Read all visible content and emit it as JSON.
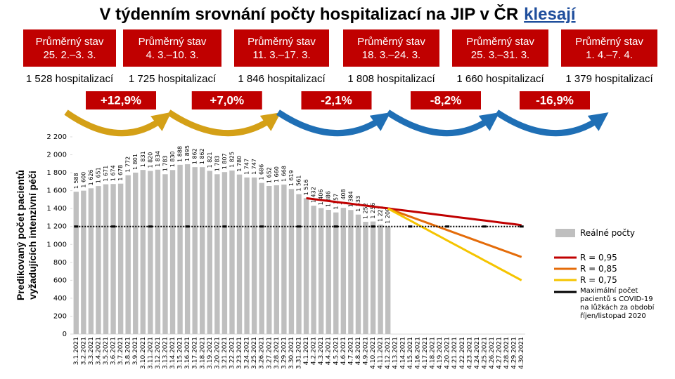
{
  "title": "V týdenním srovnání počty hospitalizací na JIP v ČR",
  "title_link": "klesají",
  "periods": [
    {
      "label": "Průměrný stav",
      "range": "25. 2.–3. 3.",
      "count": "1 528 hospitalizací"
    },
    {
      "label": "Průměrný stav",
      "range": "4. 3.–10. 3.",
      "count": "1 725 hospitalizací"
    },
    {
      "label": "Průměrný stav",
      "range": "11. 3.–17. 3.",
      "count": "1 846 hospitalizací"
    },
    {
      "label": "Průměrný stav",
      "range": "18. 3.–24. 3.",
      "count": "1 808 hospitalizací"
    },
    {
      "label": "Průměrný stav",
      "range": "25. 3.–31. 3.",
      "count": "1 660 hospitalizací"
    },
    {
      "label": "Průměrný stav",
      "range": "1. 4.–7. 4.",
      "count": "1 379 hospitalizací"
    }
  ],
  "changes": [
    "+12,9%",
    "+7,0%",
    "-2,1%",
    "-8,2%",
    "-16,9%"
  ],
  "chart_data": {
    "type": "bar",
    "y_label": "Predikovaný počet pacientů vyžadujících intenzivní péči",
    "categories": [
      "3.1.2021",
      "3.2.2021",
      "3.3.2021",
      "3.4.2021",
      "3.5.2021",
      "3.6.2021",
      "3.7.2021",
      "3.8.2021",
      "3.9.2021",
      "3.10.2021",
      "3.11.2021",
      "3.12.2021",
      "3.13.2021",
      "3.14.2021",
      "3.15.2021",
      "3.16.2021",
      "3.17.2021",
      "3.18.2021",
      "3.19.2021",
      "3.20.2021",
      "3.21.2021",
      "3.22.2021",
      "3.23.2021",
      "3.24.2021",
      "3.25.2021",
      "3.26.2021",
      "3.27.2021",
      "3.28.2021",
      "3.29.2021",
      "3.30.2021",
      "3.31.2021",
      "4.1.2021",
      "4.2.2021",
      "4.3.2021",
      "4.4.2021",
      "4.5.2021",
      "4.6.2021",
      "4.7.2021",
      "4.8.2021",
      "4.9.2021",
      "4.10.2021",
      "4.11.2021",
      "4.12.2021",
      "4.13.2021",
      "4.14.2021",
      "4.15.2021",
      "4.16.2021",
      "4.17.2021",
      "4.18.2021",
      "4.19.2021",
      "4.20.2021",
      "4.21.2021",
      "4.22.2021",
      "4.23.2021",
      "4.24.2021",
      "4.25.2021",
      "4.26.2021",
      "4.27.2021",
      "4.28.2021",
      "4.29.2021",
      "4.30.2021"
    ],
    "ylim": [
      0,
      2200
    ],
    "yticks": [
      0,
      200,
      400,
      600,
      800,
      {
        "value": 1000,
        "label": "1 000"
      },
      {
        "value": 1200,
        "label": "1 200"
      },
      {
        "value": 1400,
        "label": "1 400"
      },
      {
        "value": 1600,
        "label": "1 600"
      },
      {
        "value": 1800,
        "label": "1 800"
      },
      {
        "value": 2000,
        "label": "2 000"
      },
      {
        "value": 2200,
        "label": "2 200"
      }
    ],
    "series": [
      {
        "name": "Reálné počty",
        "type": "bar",
        "color": "#bfbfbf",
        "values": [
          1588,
          1600,
          1626,
          1651,
          1671,
          1674,
          1678,
          1772,
          1801,
          1831,
          1820,
          1834,
          1783,
          1830,
          1888,
          1895,
          1862,
          1862,
          1821,
          1783,
          1807,
          1825,
          1780,
          1747,
          1747,
          1686,
          1652,
          1660,
          1668,
          1619,
          1561,
          1516,
          1432,
          1406,
          1386,
          1357,
          1408,
          1384,
          1333,
          1252,
          1256,
          1221,
          1200,
          null,
          null,
          null,
          null,
          null,
          null,
          null,
          null,
          null,
          null,
          null,
          null,
          null,
          null,
          null,
          null,
          null,
          null
        ],
        "value_labels": [
          "1 588",
          "1 600",
          "1 626",
          "1 651",
          "1 671",
          "1 674",
          "1 678",
          "1 772",
          "1 801",
          "1 831",
          "1 820",
          "1 834",
          "1 783",
          "1 830",
          "1 888",
          "1 895",
          "1 862",
          "1 862",
          "1 821",
          "1 783",
          "1 807",
          "1 825",
          "1 780",
          "1 747",
          "1 747",
          "1 686",
          "1 652",
          "1 660",
          "1 668",
          "1 619",
          "1 561",
          "1 516",
          "1 432",
          "1 406",
          "1 386",
          "1 357",
          "1 408",
          "1 384",
          "1 333",
          "1 252",
          "1 256",
          "1 221",
          "1 200",
          null,
          null,
          null,
          null,
          null,
          null,
          null,
          null,
          null,
          null,
          null,
          null,
          null,
          null,
          null,
          null,
          null,
          null
        ]
      },
      {
        "name": "R = 0,95",
        "type": "line",
        "color": "#c00000",
        "values": [
          null,
          null,
          null,
          null,
          null,
          null,
          null,
          null,
          null,
          null,
          null,
          null,
          null,
          null,
          null,
          null,
          null,
          null,
          null,
          null,
          null,
          null,
          null,
          null,
          null,
          null,
          null,
          null,
          null,
          null,
          null,
          1516,
          1505,
          1495,
          1485,
          1474,
          1464,
          1454,
          1443,
          1433,
          1422,
          1412,
          1402,
          1391,
          1381,
          1371,
          1360,
          1350,
          1340,
          1329,
          1319,
          1308,
          1298,
          1288,
          1277,
          1267,
          1257,
          1246,
          1236,
          1226,
          1215
        ]
      },
      {
        "name": "R = 0,85",
        "type": "line",
        "color": "#e46c0a",
        "values": [
          null,
          null,
          null,
          null,
          null,
          null,
          null,
          null,
          null,
          null,
          null,
          null,
          null,
          null,
          null,
          null,
          null,
          null,
          null,
          null,
          null,
          null,
          null,
          null,
          null,
          null,
          null,
          null,
          null,
          null,
          null,
          null,
          null,
          null,
          null,
          null,
          null,
          null,
          null,
          null,
          null,
          null,
          1400,
          1370,
          1340,
          1310,
          1280,
          1250,
          1220,
          1190,
          1160,
          1130,
          1100,
          1070,
          1040,
          1010,
          980,
          950,
          920,
          890,
          860
        ]
      },
      {
        "name": "R = 0,75",
        "type": "line",
        "color": "#f5c400",
        "values": [
          null,
          null,
          null,
          null,
          null,
          null,
          null,
          null,
          null,
          null,
          null,
          null,
          null,
          null,
          null,
          null,
          null,
          null,
          null,
          null,
          null,
          null,
          null,
          null,
          null,
          null,
          null,
          null,
          null,
          null,
          null,
          null,
          null,
          null,
          null,
          null,
          null,
          null,
          null,
          null,
          null,
          null,
          1400,
          1356,
          1311,
          1267,
          1222,
          1178,
          1133,
          1089,
          1044,
          1000,
          956,
          911,
          867,
          822,
          778,
          733,
          689,
          644,
          600
        ]
      },
      {
        "name": "Maximální počet pacientů s COVID-19 na lůžkách za období říjen/listopad 2020",
        "type": "line",
        "color": "#000000",
        "dashed": true,
        "values": [
          1200,
          1200,
          1200,
          1200,
          1200,
          1200,
          1200,
          1200,
          1200,
          1200,
          1200,
          1200,
          1200,
          1200,
          1200,
          1200,
          1200,
          1200,
          1200,
          1200,
          1200,
          1200,
          1200,
          1200,
          1200,
          1200,
          1200,
          1200,
          1200,
          1200,
          1200,
          1200,
          1200,
          1200,
          1200,
          1200,
          1200,
          1200,
          1200,
          1200,
          1200,
          1200,
          1200,
          1200,
          1200,
          1200,
          1200,
          1200,
          1200,
          1200,
          1200,
          1200,
          1200,
          1200,
          1200,
          1200,
          1200,
          1200,
          1200,
          1200,
          1200
        ]
      }
    ]
  }
}
